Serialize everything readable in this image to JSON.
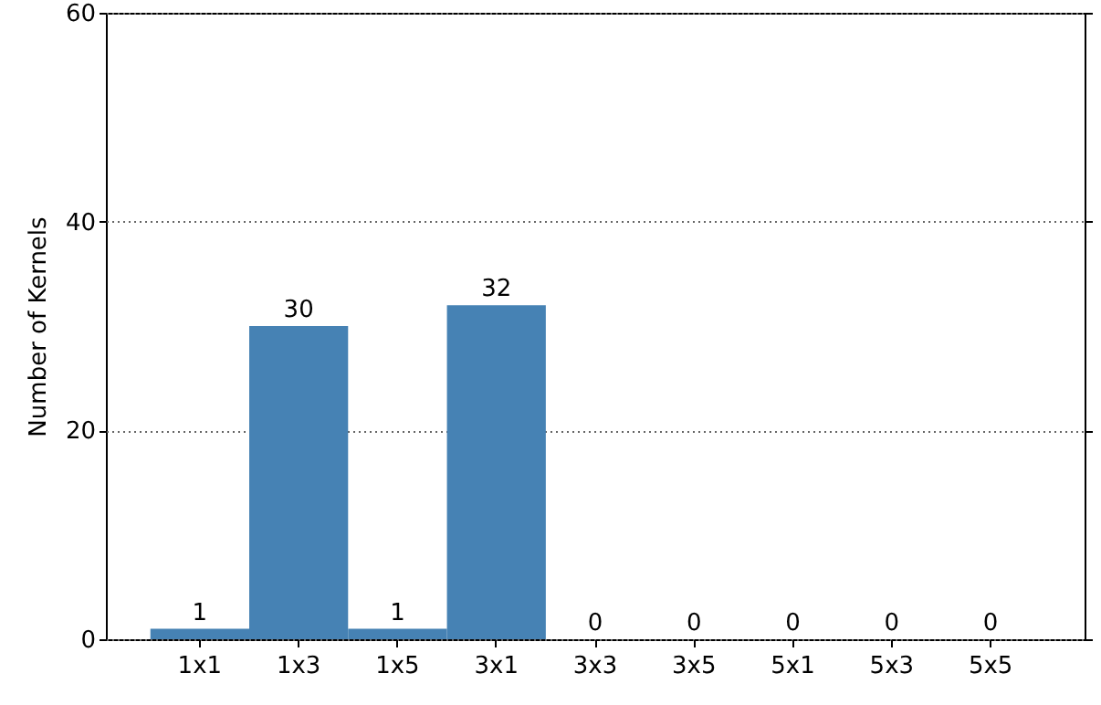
{
  "chart_data": {
    "type": "bar",
    "ylabel": "Number of Kernels",
    "categories": [
      "1x1",
      "1x3",
      "1x5",
      "3x1",
      "3x3",
      "3x5",
      "5x1",
      "5x3",
      "5x5"
    ],
    "values": [
      1,
      30,
      1,
      32,
      0,
      0,
      0,
      0,
      0
    ],
    "color": "#4682b4",
    "ylim": [
      0,
      60
    ],
    "yticks": [
      0,
      20,
      40,
      60
    ],
    "grid": "y",
    "data_labels": true
  }
}
